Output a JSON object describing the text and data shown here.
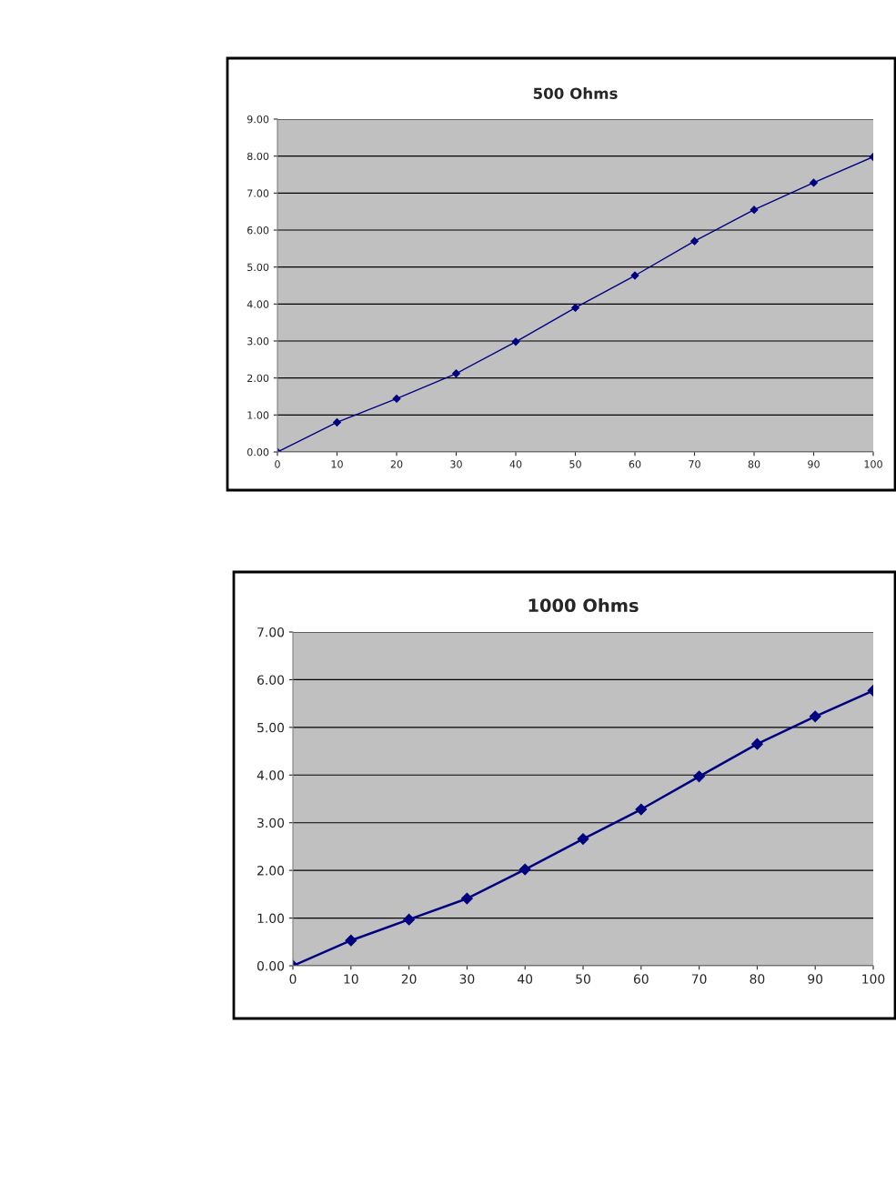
{
  "chart_data": [
    {
      "type": "line",
      "title": "500 Ohms",
      "x": [
        0,
        10,
        20,
        30,
        40,
        50,
        60,
        70,
        80,
        90,
        100
      ],
      "series": [
        {
          "color": "#000080",
          "values": [
            0,
            0.8,
            1.44,
            2.12,
            2.98,
            3.9,
            4.77,
            5.7,
            6.55,
            7.28,
            7.98
          ]
        }
      ],
      "xlim": [
        0,
        100
      ],
      "xticks": [
        0,
        10,
        20,
        30,
        40,
        50,
        60,
        70,
        80,
        90,
        100
      ],
      "ylim": [
        0,
        9
      ],
      "yticks": [
        {
          "value": 0,
          "label": "0.00"
        },
        {
          "value": 1,
          "label": "1.00"
        },
        {
          "value": 2,
          "label": "2.00"
        },
        {
          "value": 3,
          "label": "3.00"
        },
        {
          "value": 4,
          "label": "4.00"
        },
        {
          "value": 5,
          "label": "5.00"
        },
        {
          "value": 6,
          "label": "6.00"
        },
        {
          "value": 7,
          "label": "7.00"
        },
        {
          "value": 8,
          "label": "8.00"
        },
        {
          "value": 9,
          "label": "9.00"
        }
      ],
      "grid": "y",
      "marker": "diamond",
      "line_style": "solid"
    },
    {
      "type": "line",
      "title": "1000 Ohms",
      "x": [
        0,
        10,
        20,
        30,
        40,
        50,
        60,
        70,
        80,
        90,
        100
      ],
      "series": [
        {
          "color": "#000080",
          "values": [
            0,
            0.53,
            0.97,
            1.41,
            2.02,
            2.66,
            3.28,
            3.97,
            4.65,
            5.23,
            5.77
          ]
        }
      ],
      "xlim": [
        0,
        100
      ],
      "xticks": [
        0,
        10,
        20,
        30,
        40,
        50,
        60,
        70,
        80,
        90,
        100
      ],
      "ylim": [
        0,
        7
      ],
      "yticks": [
        {
          "value": 0,
          "label": "0.00"
        },
        {
          "value": 1,
          "label": "1.00"
        },
        {
          "value": 2,
          "label": "2.00"
        },
        {
          "value": 3,
          "label": "3.00"
        },
        {
          "value": 4,
          "label": "4.00"
        },
        {
          "value": 5,
          "label": "5.00"
        },
        {
          "value": 6,
          "label": "6.00"
        },
        {
          "value": 7,
          "label": "7.00"
        }
      ],
      "grid": "y",
      "marker": "diamond",
      "line_style": "solid"
    }
  ]
}
